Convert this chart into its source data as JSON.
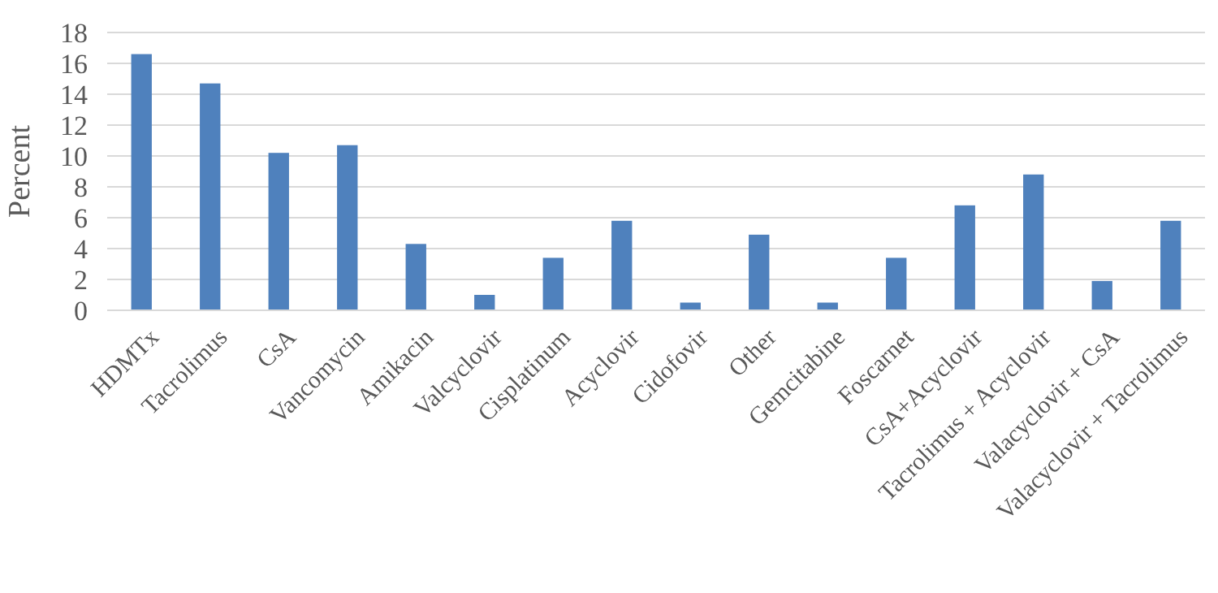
{
  "chart_data": {
    "type": "bar",
    "ylabel": "Percent",
    "categories": [
      "HDMTx",
      "Tacrolimus",
      "CsA",
      "Vancomycin",
      "Amikacin",
      "Valcyclovir",
      "Cisplatinum",
      "Acyclovir",
      "Cidofovir",
      "Other",
      "Gemcitabine",
      "Foscarnet",
      "CsA+Acyclovir",
      "Tacrolimus + Acyclovir",
      "Valacyclovir + CsA",
      "Valacyclovir + Tacrolimus"
    ],
    "values": [
      16.6,
      14.7,
      10.2,
      10.7,
      4.3,
      1.0,
      3.4,
      5.8,
      0.5,
      4.9,
      0.5,
      3.4,
      6.8,
      8.8,
      1.9,
      5.8
    ],
    "color": "#4f81bd",
    "ylim": [
      0,
      18
    ],
    "yticks": [
      0,
      2,
      4,
      6,
      8,
      10,
      12,
      14,
      16,
      18
    ],
    "grid": "y"
  }
}
